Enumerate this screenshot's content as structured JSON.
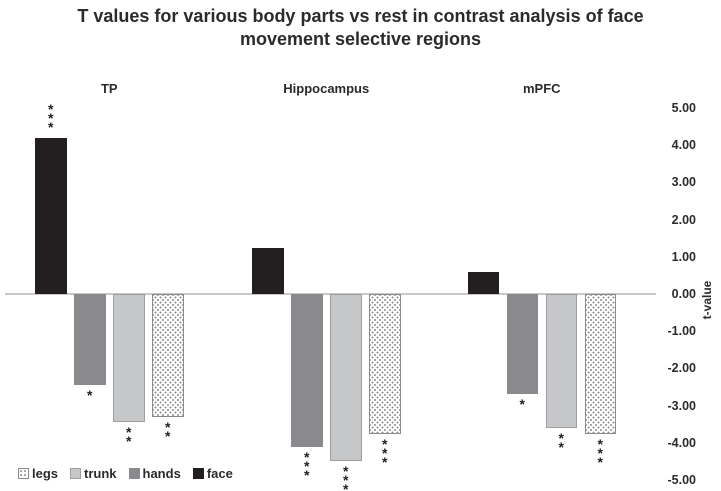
{
  "title": "T values for various body parts vs rest in contrast analysis of face movement selective regions",
  "axis": {
    "label": "t-value",
    "ticks": [
      "5.00",
      "4.00",
      "3.00",
      "2.00",
      "1.00",
      "0.00",
      "-1.00",
      "-2.00",
      "-3.00",
      "-4.00",
      "-5.00"
    ],
    "tick_values": [
      5,
      4,
      3,
      2,
      1,
      0,
      -1,
      -2,
      -3,
      -4,
      -5
    ]
  },
  "legend": [
    {
      "label": "legs",
      "style": "legs"
    },
    {
      "label": "trunk",
      "style": "trunk"
    },
    {
      "label": "hands",
      "style": "hands"
    },
    {
      "label": "face",
      "style": "face"
    }
  ],
  "colors": {
    "face": "#231f20",
    "hands": "#8a8a8e",
    "trunk": "#c6c7c9",
    "legs_dots": "#8f8f8f",
    "axis_line": "#c8c8c8"
  },
  "chart_data": {
    "type": "bar",
    "title": "T values for various body parts vs rest in contrast analysis of face movement selective regions",
    "categories": [
      "TP",
      "Hippocampus",
      "mPFC"
    ],
    "series": [
      {
        "name": "face",
        "values": [
          4.2,
          1.25,
          0.6
        ],
        "significance": [
          "***",
          "",
          ""
        ]
      },
      {
        "name": "hands",
        "values": [
          -2.45,
          -4.1,
          -2.7
        ],
        "significance": [
          "*",
          "***",
          "*"
        ]
      },
      {
        "name": "trunk",
        "values": [
          -3.45,
          -4.5,
          -3.6
        ],
        "significance": [
          "**",
          "***",
          "**"
        ]
      },
      {
        "name": "legs",
        "values": [
          -3.3,
          -3.75,
          -3.75
        ],
        "significance": [
          "**",
          "***",
          "***"
        ]
      }
    ],
    "ylabel": "t-value",
    "ylim": [
      -5,
      5
    ],
    "grid": false,
    "legend_position": "bottom-left",
    "legend_order": [
      "legs",
      "trunk",
      "hands",
      "face"
    ]
  }
}
